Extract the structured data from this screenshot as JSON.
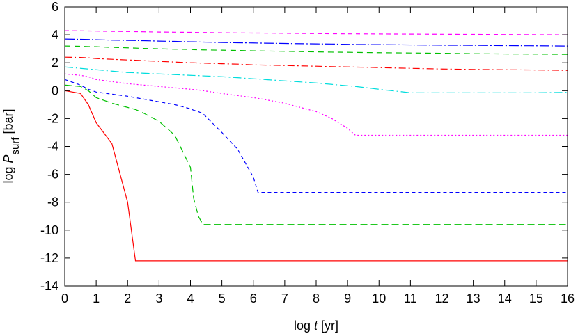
{
  "chart_data": {
    "type": "line",
    "xlabel_parts": [
      "log ",
      "t",
      " [yr]"
    ],
    "ylabel_parts": [
      "log ",
      "P",
      "surf",
      " [bar]"
    ],
    "xlim": [
      0,
      16
    ],
    "xticks": [
      0,
      1,
      2,
      3,
      4,
      5,
      6,
      7,
      8,
      9,
      10,
      11,
      12,
      13,
      14,
      15,
      16
    ],
    "ylim": [
      -14,
      6
    ],
    "yticks": [
      -14,
      -12,
      -10,
      -8,
      -6,
      -4,
      -2,
      0,
      2,
      4,
      6
    ],
    "grid": false,
    "x": [
      0,
      0.5,
      0.75,
      1,
      1.5,
      2,
      2.25,
      2.5,
      3,
      3.5,
      4,
      4.1,
      4.25,
      4.4,
      5,
      5.5,
      6,
      6.15,
      7,
      8,
      8.5,
      9,
      9.25,
      10,
      11,
      12,
      13,
      14,
      15,
      16
    ],
    "series": [
      {
        "color": "#ff0000",
        "dash": "none",
        "values": [
          0,
          -0.2,
          -1,
          -2.3,
          -3.8,
          -8,
          -12.2,
          -12.2,
          -12.2,
          -12.2,
          -12.2,
          -12.2,
          -12.2,
          -12.2,
          -12.2,
          -12.2,
          -12.2,
          -12.2,
          -12.2,
          -12.2,
          -12.2,
          -12.2,
          -12.2,
          -12.2,
          -12.2,
          -12.2,
          -12.2,
          -12.2,
          -12.2,
          -12.2
        ]
      },
      {
        "color": "#00c000",
        "dash": "10,5",
        "values": [
          0.4,
          0.3,
          0,
          -0.5,
          -0.9,
          -1.2,
          -1.35,
          -1.6,
          -2.2,
          -3.2,
          -5.5,
          -7.7,
          -9,
          -9.6,
          -9.6,
          -9.6,
          -9.6,
          -9.6,
          -9.6,
          -9.6,
          -9.6,
          -9.6,
          -9.6,
          -9.6,
          -9.6,
          -9.6,
          -9.6,
          -9.6,
          -9.6,
          -9.6
        ]
      },
      {
        "color": "#0000ff",
        "dash": "5,4",
        "values": [
          0.8,
          0.4,
          0.1,
          -0.1,
          -0.25,
          -0.4,
          -0.5,
          -0.6,
          -0.8,
          -1.0,
          -1.3,
          -1.4,
          -1.5,
          -1.65,
          -3.0,
          -4.2,
          -6.2,
          -7.3,
          -7.3,
          -7.3,
          -7.3,
          -7.3,
          -7.3,
          -7.3,
          -7.3,
          -7.3,
          -7.3,
          -7.3,
          -7.3,
          -7.3
        ]
      },
      {
        "color": "#ff00ff",
        "dash": "2,3",
        "values": [
          1.2,
          1.1,
          1.0,
          0.8,
          0.65,
          0.5,
          0.45,
          0.4,
          0.3,
          0.2,
          0.1,
          0.08,
          0.05,
          0,
          -0.2,
          -0.35,
          -0.5,
          -0.55,
          -0.9,
          -1.5,
          -2.0,
          -2.7,
          -3.2,
          -3.2,
          -3.2,
          -3.2,
          -3.2,
          -3.2,
          -3.2,
          -3.2
        ]
      },
      {
        "color": "#00dddd",
        "dash": "12,4,2,4",
        "values": [
          1.7,
          1.6,
          1.55,
          1.5,
          1.4,
          1.3,
          1.28,
          1.25,
          1.2,
          1.15,
          1.1,
          1.09,
          1.08,
          1.06,
          1.0,
          0.93,
          0.85,
          0.83,
          0.7,
          0.55,
          0.45,
          0.35,
          0.3,
          0.1,
          -0.15,
          -0.15,
          -0.15,
          -0.15,
          -0.15,
          -0.12
        ]
      },
      {
        "color": "#ff0000",
        "dash": "10,4,2,4",
        "values": [
          2.4,
          2.38,
          2.35,
          2.3,
          2.25,
          2.2,
          2.18,
          2.15,
          2.1,
          2.05,
          2.0,
          2.0,
          1.98,
          1.97,
          1.93,
          1.9,
          1.85,
          1.84,
          1.8,
          1.75,
          1.72,
          1.7,
          1.69,
          1.65,
          1.6,
          1.55,
          1.52,
          1.5,
          1.48,
          1.45
        ]
      },
      {
        "color": "#00c000",
        "dash": "8,6",
        "values": [
          3.2,
          3.18,
          3.16,
          3.15,
          3.1,
          3.07,
          3.05,
          3.03,
          3.0,
          2.97,
          2.95,
          2.94,
          2.93,
          2.92,
          2.9,
          2.88,
          2.85,
          2.85,
          2.82,
          2.78,
          2.76,
          2.75,
          2.74,
          2.72,
          2.7,
          2.68,
          2.65,
          2.63,
          2.62,
          2.6
        ]
      },
      {
        "color": "#0000ff",
        "dash": "14,3,2,3",
        "values": [
          3.7,
          3.68,
          3.67,
          3.65,
          3.62,
          3.6,
          3.59,
          3.58,
          3.55,
          3.53,
          3.5,
          3.5,
          3.49,
          3.48,
          3.45,
          3.43,
          3.42,
          3.41,
          3.38,
          3.35,
          3.34,
          3.32,
          3.31,
          3.3,
          3.28,
          3.26,
          3.25,
          3.23,
          3.22,
          3.2
        ]
      },
      {
        "color": "#ff00ff",
        "dash": "6,5",
        "values": [
          4.3,
          4.29,
          4.28,
          4.27,
          4.25,
          4.24,
          4.23,
          4.22,
          4.2,
          4.19,
          4.18,
          4.18,
          4.17,
          4.17,
          4.15,
          4.14,
          4.13,
          4.13,
          4.11,
          4.09,
          4.08,
          4.07,
          4.07,
          4.06,
          4.05,
          4.04,
          4.03,
          4.02,
          4.01,
          4.0
        ]
      }
    ]
  }
}
